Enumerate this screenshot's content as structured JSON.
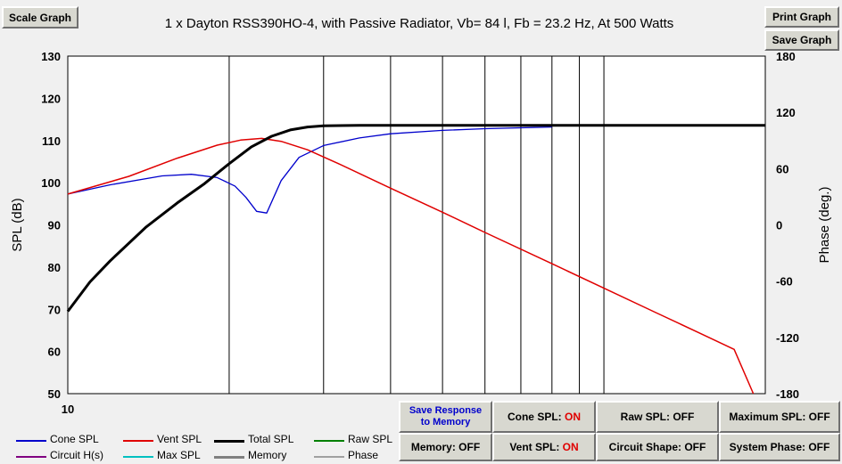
{
  "buttons": {
    "scale_graph": "Scale Graph",
    "print_graph": "Print Graph",
    "save_graph": "Save Graph",
    "save_response_line1": "Save Response",
    "save_response_line2": "to Memory",
    "memory": "Memory: OFF",
    "cone_spl_label": "Cone SPL:",
    "cone_spl_state": "ON",
    "vent_spl_label": "Vent SPL:",
    "vent_spl_state": "ON",
    "raw_spl": "Raw SPL: OFF",
    "circuit_shape": "Circuit Shape: OFF",
    "maximum_spl": "Maximum SPL: OFF",
    "system_phase": "System Phase: OFF"
  },
  "chart_data": {
    "type": "line",
    "title": "1 x Dayton RSS390HO-4,  with Passive Radiator, Vb= 84 l,  Fb = 23.2 Hz,  At 500 Watts",
    "xlabel": "",
    "ylabel": "SPL (dB)",
    "y2label": "Phase (deg.)",
    "x_scale": "log",
    "xlim": [
      10,
      200
    ],
    "x_tick_labels": [
      "10"
    ],
    "ylim": [
      50,
      130
    ],
    "yticks": [
      50,
      60,
      70,
      80,
      90,
      100,
      110,
      120,
      130
    ],
    "y2lim": [
      -180,
      180
    ],
    "y2ticks": [
      -180,
      -120,
      -60,
      0,
      60,
      120,
      180
    ],
    "grid": true,
    "legend_position": "bottom",
    "series": [
      {
        "name": "Cone SPL",
        "color": "#0000cc",
        "x": [
          10,
          12,
          15,
          17,
          19,
          20.5,
          21.5,
          22.5,
          23.5,
          25,
          27,
          30,
          35,
          40,
          50,
          60,
          70,
          80
        ],
        "y": [
          97.3,
          99.5,
          101.6,
          102.0,
          101.2,
          99.2,
          96.5,
          93.2,
          92.8,
          100.5,
          106.0,
          108.8,
          110.6,
          111.6,
          112.4,
          112.8,
          113.0,
          113.2
        ]
      },
      {
        "name": "Vent SPL",
        "color": "#e00000",
        "x": [
          10,
          13,
          16,
          19,
          21,
          23,
          25,
          28,
          32,
          40,
          50,
          60,
          80,
          100,
          125,
          150,
          175,
          190
        ],
        "y": [
          97.3,
          101.5,
          105.8,
          108.9,
          110.1,
          110.5,
          109.8,
          107.8,
          104.5,
          98.7,
          93.0,
          88.2,
          80.8,
          75.0,
          69.2,
          64.5,
          60.5,
          50.0
        ]
      },
      {
        "name": "Total SPL",
        "color": "#000000",
        "x": [
          10,
          11,
          12,
          14,
          16,
          18,
          20,
          22,
          24,
          26,
          28,
          30,
          35,
          40,
          60,
          100,
          200
        ],
        "y": [
          69.5,
          76.5,
          81.5,
          89.5,
          95.2,
          99.8,
          104.5,
          108.5,
          111.0,
          112.5,
          113.2,
          113.5,
          113.6,
          113.6,
          113.6,
          113.6,
          113.6
        ]
      },
      {
        "name": "Raw SPL",
        "color": "#008000",
        "x": [],
        "y": []
      },
      {
        "name": "Circuit H(s)",
        "color": "#800080",
        "x": [],
        "y": []
      },
      {
        "name": "Max SPL",
        "color": "#00c0c0",
        "x": [],
        "y": []
      },
      {
        "name": "Memory",
        "color": "#808080",
        "x": [],
        "y": []
      },
      {
        "name": "Phase",
        "color": "#a0a0a0",
        "x": [],
        "y": []
      }
    ]
  }
}
